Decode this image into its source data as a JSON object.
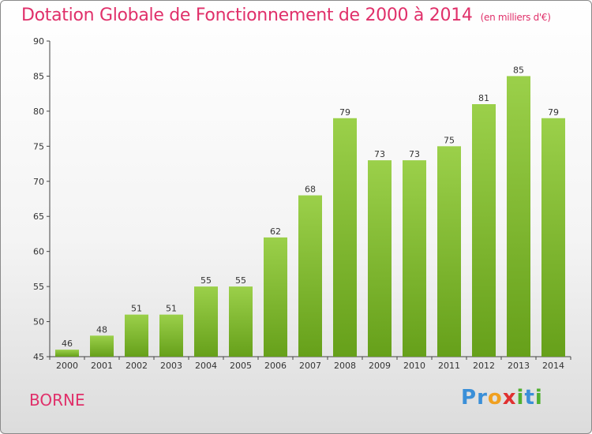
{
  "chart_data": {
    "type": "bar",
    "title": "Dotation Globale de Fonctionnement de 2000 à 2014",
    "subtitle": "(en milliers d'€)",
    "categories": [
      "2000",
      "2001",
      "2002",
      "2003",
      "2004",
      "2005",
      "2006",
      "2007",
      "2008",
      "2009",
      "2010",
      "2011",
      "2012",
      "2013",
      "2014"
    ],
    "values": [
      46,
      48,
      51,
      51,
      55,
      55,
      62,
      68,
      79,
      73,
      73,
      75,
      81,
      85,
      79
    ],
    "ylim": [
      45,
      90
    ],
    "yticks": [
      45,
      50,
      55,
      60,
      65,
      70,
      75,
      80,
      85,
      90
    ],
    "xlabel": "",
    "ylabel": "",
    "grid": false,
    "bar_color_top": "#9bd04a",
    "bar_color_bottom": "#66a01a"
  },
  "footer": {
    "place_name": "BORNE",
    "brand_letters": [
      {
        "ch": "P",
        "color": "#3a8fd8"
      },
      {
        "ch": "r",
        "color": "#3a8fd8"
      },
      {
        "ch": "o",
        "color": "#f0a020"
      },
      {
        "ch": "x",
        "color": "#e03030"
      },
      {
        "ch": "i",
        "color": "#50b030"
      },
      {
        "ch": "t",
        "color": "#3a8fd8"
      },
      {
        "ch": "i",
        "color": "#50b030"
      }
    ]
  },
  "colors": {
    "accent": "#e0306a"
  }
}
